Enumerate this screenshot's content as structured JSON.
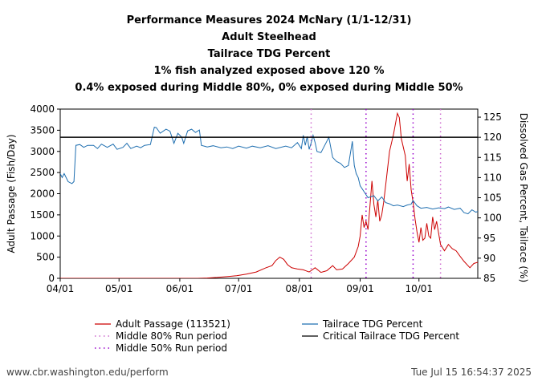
{
  "chart_data": {
    "type": "line",
    "title_lines": [
      "Performance Measures 2024 McNary (1/1-12/31)",
      "Adult Steelhead",
      "Tailrace TDG Percent",
      "1% fish analyzed exposed above 120 %",
      "0.4% exposed during Middle 80%, 0% exposed during Middle 50%"
    ],
    "ylabel_left": "Adult Passage (Fish/Day)",
    "ylabel_right": "Dissolved Gas Percent, Tailrace (%)",
    "ylim_left": [
      0,
      4000
    ],
    "yticks_left": [
      0,
      500,
      1000,
      1500,
      2000,
      2500,
      3000,
      3500,
      4000
    ],
    "ylim_right": [
      85,
      127
    ],
    "yticks_right": [
      85,
      90,
      95,
      100,
      105,
      110,
      115,
      120,
      125
    ],
    "x_range": [
      "2024-04-01",
      "2024-10-31"
    ],
    "x_ticks": [
      "2024-04-01",
      "2024-05-01",
      "2024-06-01",
      "2024-07-01",
      "2024-08-01",
      "2024-09-01",
      "2024-10-01"
    ],
    "x_tick_labels": [
      "04/01",
      "05/01",
      "06/01",
      "07/01",
      "08/01",
      "09/01",
      "10/01"
    ],
    "critical_tdg": 120,
    "middle80_dates": [
      "2024-08-07",
      "2024-10-12"
    ],
    "middle50_dates": [
      "2024-09-04",
      "2024-09-28"
    ],
    "series": [
      {
        "name": "Adult Passage (113521)",
        "axis": "left",
        "color": "#cc0000",
        "points": [
          [
            "2024-04-01",
            0
          ],
          [
            "2024-05-15",
            0
          ],
          [
            "2024-06-10",
            0
          ],
          [
            "2024-06-15",
            8
          ],
          [
            "2024-06-20",
            20
          ],
          [
            "2024-06-25",
            40
          ],
          [
            "2024-06-30",
            60
          ],
          [
            "2024-07-05",
            100
          ],
          [
            "2024-07-10",
            150
          ],
          [
            "2024-07-15",
            250
          ],
          [
            "2024-07-18",
            300
          ],
          [
            "2024-07-20",
            420
          ],
          [
            "2024-07-22",
            500
          ],
          [
            "2024-07-24",
            450
          ],
          [
            "2024-07-26",
            320
          ],
          [
            "2024-07-28",
            250
          ],
          [
            "2024-07-31",
            220
          ],
          [
            "2024-08-03",
            200
          ],
          [
            "2024-08-06",
            150
          ],
          [
            "2024-08-09",
            250
          ],
          [
            "2024-08-12",
            140
          ],
          [
            "2024-08-15",
            180
          ],
          [
            "2024-08-18",
            300
          ],
          [
            "2024-08-20",
            200
          ],
          [
            "2024-08-23",
            220
          ],
          [
            "2024-08-26",
            350
          ],
          [
            "2024-08-29",
            500
          ],
          [
            "2024-08-31",
            750
          ],
          [
            "2024-09-01",
            1000
          ],
          [
            "2024-09-02",
            1500
          ],
          [
            "2024-09-03",
            1200
          ],
          [
            "2024-09-04",
            1350
          ],
          [
            "2024-09-05",
            1150
          ],
          [
            "2024-09-06",
            1700
          ],
          [
            "2024-09-07",
            2300
          ],
          [
            "2024-09-08",
            1750
          ],
          [
            "2024-09-09",
            1450
          ],
          [
            "2024-09-10",
            1850
          ],
          [
            "2024-09-11",
            1350
          ],
          [
            "2024-09-12",
            1500
          ],
          [
            "2024-09-13",
            1800
          ],
          [
            "2024-09-14",
            2200
          ],
          [
            "2024-09-16",
            3000
          ],
          [
            "2024-09-18",
            3400
          ],
          [
            "2024-09-20",
            3900
          ],
          [
            "2024-09-21",
            3800
          ],
          [
            "2024-09-22",
            3300
          ],
          [
            "2024-09-24",
            2900
          ],
          [
            "2024-09-25",
            2300
          ],
          [
            "2024-09-26",
            2700
          ],
          [
            "2024-09-27",
            2100
          ],
          [
            "2024-09-28",
            1800
          ],
          [
            "2024-09-29",
            1400
          ],
          [
            "2024-09-30",
            1100
          ],
          [
            "2024-10-01",
            850
          ],
          [
            "2024-10-02",
            1200
          ],
          [
            "2024-10-03",
            900
          ],
          [
            "2024-10-04",
            950
          ],
          [
            "2024-10-05",
            1300
          ],
          [
            "2024-10-06",
            1000
          ],
          [
            "2024-10-07",
            950
          ],
          [
            "2024-10-08",
            1450
          ],
          [
            "2024-10-09",
            1150
          ],
          [
            "2024-10-10",
            1350
          ],
          [
            "2024-10-12",
            800
          ],
          [
            "2024-10-14",
            650
          ],
          [
            "2024-10-16",
            800
          ],
          [
            "2024-10-18",
            700
          ],
          [
            "2024-10-20",
            650
          ],
          [
            "2024-10-22",
            520
          ],
          [
            "2024-10-24",
            400
          ],
          [
            "2024-10-26",
            300
          ],
          [
            "2024-10-27",
            250
          ],
          [
            "2024-10-29",
            350
          ],
          [
            "2024-10-31",
            380
          ]
        ]
      },
      {
        "name": "Tailrace TDG Percent",
        "axis": "right",
        "color": "#1f6fb0",
        "points": [
          [
            "2024-04-01",
            111
          ],
          [
            "2024-04-02",
            110
          ],
          [
            "2024-04-03",
            111
          ],
          [
            "2024-04-05",
            109
          ],
          [
            "2024-04-07",
            108.5
          ],
          [
            "2024-04-08",
            109
          ],
          [
            "2024-04-09",
            118
          ],
          [
            "2024-04-11",
            118.2
          ],
          [
            "2024-04-13",
            117.5
          ],
          [
            "2024-04-15",
            118
          ],
          [
            "2024-04-18",
            118
          ],
          [
            "2024-04-20",
            117.2
          ],
          [
            "2024-04-22",
            118.3
          ],
          [
            "2024-04-25",
            117.5
          ],
          [
            "2024-04-28",
            118.3
          ],
          [
            "2024-04-30",
            117
          ],
          [
            "2024-05-03",
            117.5
          ],
          [
            "2024-05-05",
            118.5
          ],
          [
            "2024-05-07",
            117.2
          ],
          [
            "2024-05-10",
            117.8
          ],
          [
            "2024-05-12",
            117.4
          ],
          [
            "2024-05-14",
            118
          ],
          [
            "2024-05-17",
            118.2
          ],
          [
            "2024-05-19",
            122.5
          ],
          [
            "2024-05-20",
            122.4
          ],
          [
            "2024-05-22",
            121
          ],
          [
            "2024-05-25",
            122
          ],
          [
            "2024-05-27",
            121.5
          ],
          [
            "2024-05-29",
            118.5
          ],
          [
            "2024-05-31",
            121
          ],
          [
            "2024-06-02",
            120
          ],
          [
            "2024-06-03",
            118.5
          ],
          [
            "2024-06-05",
            121.6
          ],
          [
            "2024-06-07",
            122
          ],
          [
            "2024-06-09",
            121.2
          ],
          [
            "2024-06-11",
            121.8
          ],
          [
            "2024-06-12",
            118
          ],
          [
            "2024-06-15",
            117.6
          ],
          [
            "2024-06-18",
            117.9
          ],
          [
            "2024-06-22",
            117.4
          ],
          [
            "2024-06-25",
            117.6
          ],
          [
            "2024-06-28",
            117.2
          ],
          [
            "2024-07-01",
            117.8
          ],
          [
            "2024-07-05",
            117.3
          ],
          [
            "2024-07-08",
            117.8
          ],
          [
            "2024-07-12",
            117.4
          ],
          [
            "2024-07-16",
            117.9
          ],
          [
            "2024-07-20",
            117.2
          ],
          [
            "2024-07-25",
            117.8
          ],
          [
            "2024-07-28",
            117.4
          ],
          [
            "2024-07-31",
            118.7
          ],
          [
            "2024-08-02",
            117.2
          ],
          [
            "2024-08-03",
            120.5
          ],
          [
            "2024-08-04",
            118
          ],
          [
            "2024-08-05",
            120.2
          ],
          [
            "2024-08-06",
            117
          ],
          [
            "2024-08-07",
            118.6
          ],
          [
            "2024-08-08",
            120.5
          ],
          [
            "2024-08-09",
            118.7
          ],
          [
            "2024-08-10",
            116.5
          ],
          [
            "2024-08-12",
            116.2
          ],
          [
            "2024-08-15",
            119
          ],
          [
            "2024-08-16",
            120
          ],
          [
            "2024-08-18",
            115
          ],
          [
            "2024-08-20",
            114
          ],
          [
            "2024-08-22",
            113.5
          ],
          [
            "2024-08-24",
            112.5
          ],
          [
            "2024-08-26",
            113
          ],
          [
            "2024-08-28",
            119
          ],
          [
            "2024-08-29",
            113
          ],
          [
            "2024-08-30",
            111
          ],
          [
            "2024-08-31",
            110
          ],
          [
            "2024-09-01",
            108
          ],
          [
            "2024-09-03",
            106.5
          ],
          [
            "2024-09-05",
            105
          ],
          [
            "2024-09-08",
            105.5
          ],
          [
            "2024-09-10",
            104.2
          ],
          [
            "2024-09-12",
            105.2
          ],
          [
            "2024-09-14",
            103.8
          ],
          [
            "2024-09-16",
            103.5
          ],
          [
            "2024-09-18",
            103
          ],
          [
            "2024-09-20",
            103.2
          ],
          [
            "2024-09-23",
            102.8
          ],
          [
            "2024-09-25",
            103.2
          ],
          [
            "2024-09-27",
            103.4
          ],
          [
            "2024-09-28",
            104.3
          ],
          [
            "2024-09-30",
            103
          ],
          [
            "2024-10-02",
            102.4
          ],
          [
            "2024-10-05",
            102.6
          ],
          [
            "2024-10-08",
            102.2
          ],
          [
            "2024-10-11",
            102.5
          ],
          [
            "2024-10-14",
            102.3
          ],
          [
            "2024-10-16",
            102.7
          ],
          [
            "2024-10-19",
            102.1
          ],
          [
            "2024-10-22",
            102.4
          ],
          [
            "2024-10-24",
            101.3
          ],
          [
            "2024-10-26",
            101
          ],
          [
            "2024-10-28",
            102
          ],
          [
            "2024-10-30",
            101.4
          ],
          [
            "2024-10-31",
            101.6
          ]
        ]
      }
    ],
    "legend": [
      {
        "label": "Adult Passage (113521)",
        "style": "solid",
        "color": "#cc0000"
      },
      {
        "label": "Middle 80% Run period",
        "style": "dotted",
        "color": "#cc66cc"
      },
      {
        "label": "Middle 50% Run period",
        "style": "dotted",
        "color": "#9900cc"
      },
      {
        "label": "Tailrace TDG Percent",
        "style": "solid",
        "color": "#1f6fb0"
      },
      {
        "label": "Critical Tailrace TDG Percent",
        "style": "solid",
        "color": "#000000"
      }
    ]
  },
  "footer": {
    "source": "www.cbr.washington.edu/perform",
    "timestamp": "Tue Jul 15 16:54:37 2025"
  }
}
